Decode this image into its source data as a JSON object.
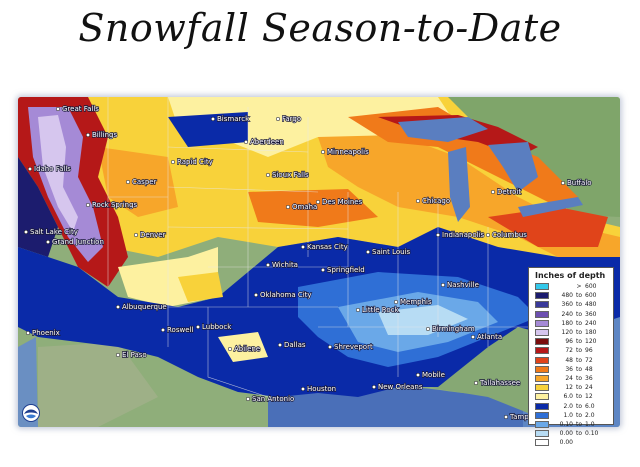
{
  "page": {
    "title": "Snowfall Season-to-Date"
  },
  "legend": {
    "title": "Inches of depth",
    "rows": [
      {
        "lo": "",
        "sep": ">",
        "hi": "600",
        "color": "#33c8ea"
      },
      {
        "lo": "480",
        "sep": "to",
        "hi": "600",
        "color": "#1c1c6e"
      },
      {
        "lo": "360",
        "sep": "to",
        "hi": "480",
        "color": "#3a3a9a"
      },
      {
        "lo": "240",
        "sep": "to",
        "hi": "360",
        "color": "#6c4fb0"
      },
      {
        "lo": "180",
        "sep": "to",
        "hi": "240",
        "color": "#a58ad6"
      },
      {
        "lo": "120",
        "sep": "to",
        "hi": "180",
        "color": "#d6c6ee"
      },
      {
        "lo": "96",
        "sep": "to",
        "hi": "120",
        "color": "#7a0d0d"
      },
      {
        "lo": "72",
        "sep": "to",
        "hi": "96",
        "color": "#b51818"
      },
      {
        "lo": "48",
        "sep": "to",
        "hi": "72",
        "color": "#e0441a"
      },
      {
        "lo": "36",
        "sep": "to",
        "hi": "48",
        "color": "#f07a1a"
      },
      {
        "lo": "24",
        "sep": "to",
        "hi": "36",
        "color": "#f7a62a"
      },
      {
        "lo": "12",
        "sep": "to",
        "hi": "24",
        "color": "#f8d23a"
      },
      {
        "lo": "6.0",
        "sep": "to",
        "hi": "12",
        "color": "#fdf1a0"
      },
      {
        "lo": "2.0",
        "sep": "to",
        "hi": "6.0",
        "color": "#0a2aa8"
      },
      {
        "lo": "1.0",
        "sep": "to",
        "hi": "2.0",
        "color": "#2f6fd6"
      },
      {
        "lo": "0.10",
        "sep": "to",
        "hi": "1.0",
        "color": "#6aa8e8"
      },
      {
        "lo": "0.00",
        "sep": "to",
        "hi": "0.10",
        "color": "#b7dcf4"
      },
      {
        "lo": "0.00",
        "sep": "",
        "hi": "",
        "color": "#ffffff"
      }
    ]
  },
  "cities": [
    {
      "key": "great-falls",
      "name": "Great Falls"
    },
    {
      "key": "billings",
      "name": "Billings"
    },
    {
      "key": "bismarck",
      "name": "Bismarck"
    },
    {
      "key": "fargo",
      "name": "Fargo"
    },
    {
      "key": "aberdeen",
      "name": "Aberdeen"
    },
    {
      "key": "minneapolis",
      "name": "Minneapolis"
    },
    {
      "key": "idaho-falls",
      "name": "Idaho Falls"
    },
    {
      "key": "casper",
      "name": "Casper"
    },
    {
      "key": "rapid-city",
      "name": "Rapid City"
    },
    {
      "key": "sioux-falls",
      "name": "Sioux Falls"
    },
    {
      "key": "rock-springs",
      "name": "Rock Springs"
    },
    {
      "key": "omaha",
      "name": "Omaha"
    },
    {
      "key": "des-moines",
      "name": "Des Moines"
    },
    {
      "key": "chicago",
      "name": "Chicago"
    },
    {
      "key": "detroit",
      "name": "Detroit"
    },
    {
      "key": "buffalo",
      "name": "Buffalo"
    },
    {
      "key": "salt-lake-city",
      "name": "Salt Lake City"
    },
    {
      "key": "grand-junction",
      "name": "Grand Junction"
    },
    {
      "key": "denver",
      "name": "Denver"
    },
    {
      "key": "kansas-city",
      "name": "Kansas City"
    },
    {
      "key": "indianapolis",
      "name": "Indianapolis"
    },
    {
      "key": "columbus",
      "name": "Columbus"
    },
    {
      "key": "wichita",
      "name": "Wichita"
    },
    {
      "key": "springfield",
      "name": "Springfield"
    },
    {
      "key": "saint-louis",
      "name": "Saint Louis"
    },
    {
      "key": "albuquerque",
      "name": "Albuquerque"
    },
    {
      "key": "oklahoma-city",
      "name": "Oklahoma City"
    },
    {
      "key": "nashville",
      "name": "Nashville"
    },
    {
      "key": "memphis",
      "name": "Memphis"
    },
    {
      "key": "little-rock",
      "name": "Little Rock"
    },
    {
      "key": "roswell",
      "name": "Roswell"
    },
    {
      "key": "lubbock",
      "name": "Lubbock"
    },
    {
      "key": "phoenix",
      "name": "Phoenix"
    },
    {
      "key": "el-paso",
      "name": "El Paso"
    },
    {
      "key": "abilene",
      "name": "Abilene"
    },
    {
      "key": "dallas",
      "name": "Dallas"
    },
    {
      "key": "shreveport",
      "name": "Shreveport"
    },
    {
      "key": "birmingham",
      "name": "Birmingham"
    },
    {
      "key": "atlanta",
      "name": "Atlanta"
    },
    {
      "key": "mobile",
      "name": "Mobile"
    },
    {
      "key": "tallahassee",
      "name": "Tallahassee"
    },
    {
      "key": "new-orleans",
      "name": "New Orleans"
    },
    {
      "key": "houston",
      "name": "Houston"
    },
    {
      "key": "san-antonio",
      "name": "San Antonio"
    },
    {
      "key": "tampa",
      "name": "Tampa"
    }
  ]
}
